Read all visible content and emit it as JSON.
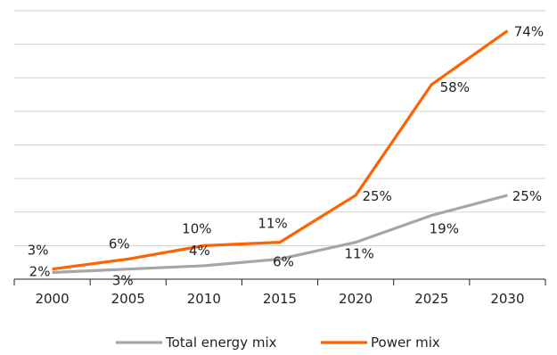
{
  "chart_data": {
    "type": "line",
    "categories": [
      "2000",
      "2005",
      "2010",
      "2015",
      "2020",
      "2025",
      "2030"
    ],
    "ylim": [
      0,
      80
    ],
    "grid": true,
    "legend_position": "bottom",
    "series": [
      {
        "name": "Total energy mix",
        "color": "#A6A6A6",
        "values": [
          2,
          3,
          4,
          6,
          11,
          19,
          25
        ],
        "labels": [
          "2%",
          "3%",
          "4%",
          "6%",
          "11%",
          "19%",
          "25%"
        ]
      },
      {
        "name": "Power mix",
        "color": "#FF6200",
        "values": [
          3,
          6,
          10,
          11,
          25,
          58,
          74
        ],
        "labels": [
          "3%",
          "6%",
          "10%",
          "11%",
          "25%",
          "58%",
          "74%"
        ]
      }
    ]
  }
}
